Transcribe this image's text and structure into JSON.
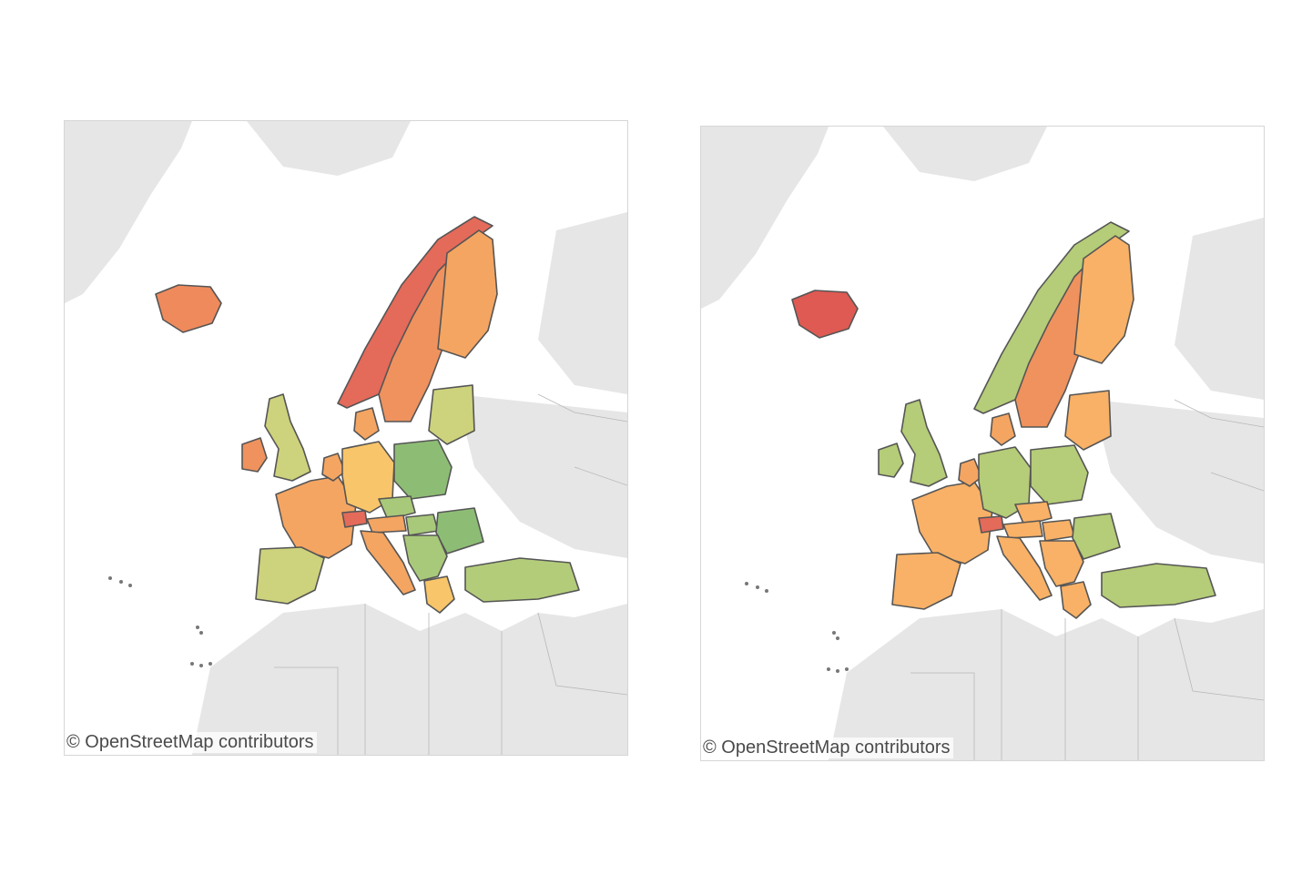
{
  "maps": [
    {
      "id": "left",
      "attribution": "© OpenStreetMap contributors",
      "colors": {
        "norway": "#e46a5a",
        "sweden": "#ef925e",
        "finland": "#f4a562",
        "iceland": "#ef8a5c",
        "uk": "#cdd27c",
        "ireland": "#ef925e",
        "france": "#f4a562",
        "spain": "#cdd27c",
        "portugal": "#cdd27c",
        "germany": "#f8c56a",
        "benelux": "#f4a562",
        "denmark": "#f4a562",
        "poland": "#8dbd74",
        "baltics": "#cdd27c",
        "czech": "#a9c97a",
        "austria": "#f4a562",
        "switzerland": "#e46a5a",
        "italy": "#f4a562",
        "hungary": "#a9c97a",
        "romania": "#8dbd74",
        "balkans": "#a9c97a",
        "greece": "#f8c56a",
        "turkey": "#b3cc7a"
      }
    },
    {
      "id": "right",
      "attribution": "© OpenStreetMap contributors",
      "colors": {
        "norway": "#b5cc78",
        "sweden": "#ef925e",
        "finland": "#f8b166",
        "iceland": "#df5a52",
        "uk": "#b5cc78",
        "ireland": "#b5cc78",
        "france": "#f8b166",
        "spain": "#f8b166",
        "portugal": "#f8b166",
        "germany": "#b5cc78",
        "benelux": "#f4a562",
        "denmark": "#f4a562",
        "poland": "#b5cc78",
        "baltics": "#f8b166",
        "czech": "#f8b166",
        "austria": "#f8b166",
        "switzerland": "#e46a5a",
        "italy": "#f8b166",
        "hungary": "#f8b166",
        "romania": "#b5cc78",
        "balkans": "#f8b166",
        "greece": "#f8b166",
        "turkey": "#b5cc78"
      }
    }
  ]
}
